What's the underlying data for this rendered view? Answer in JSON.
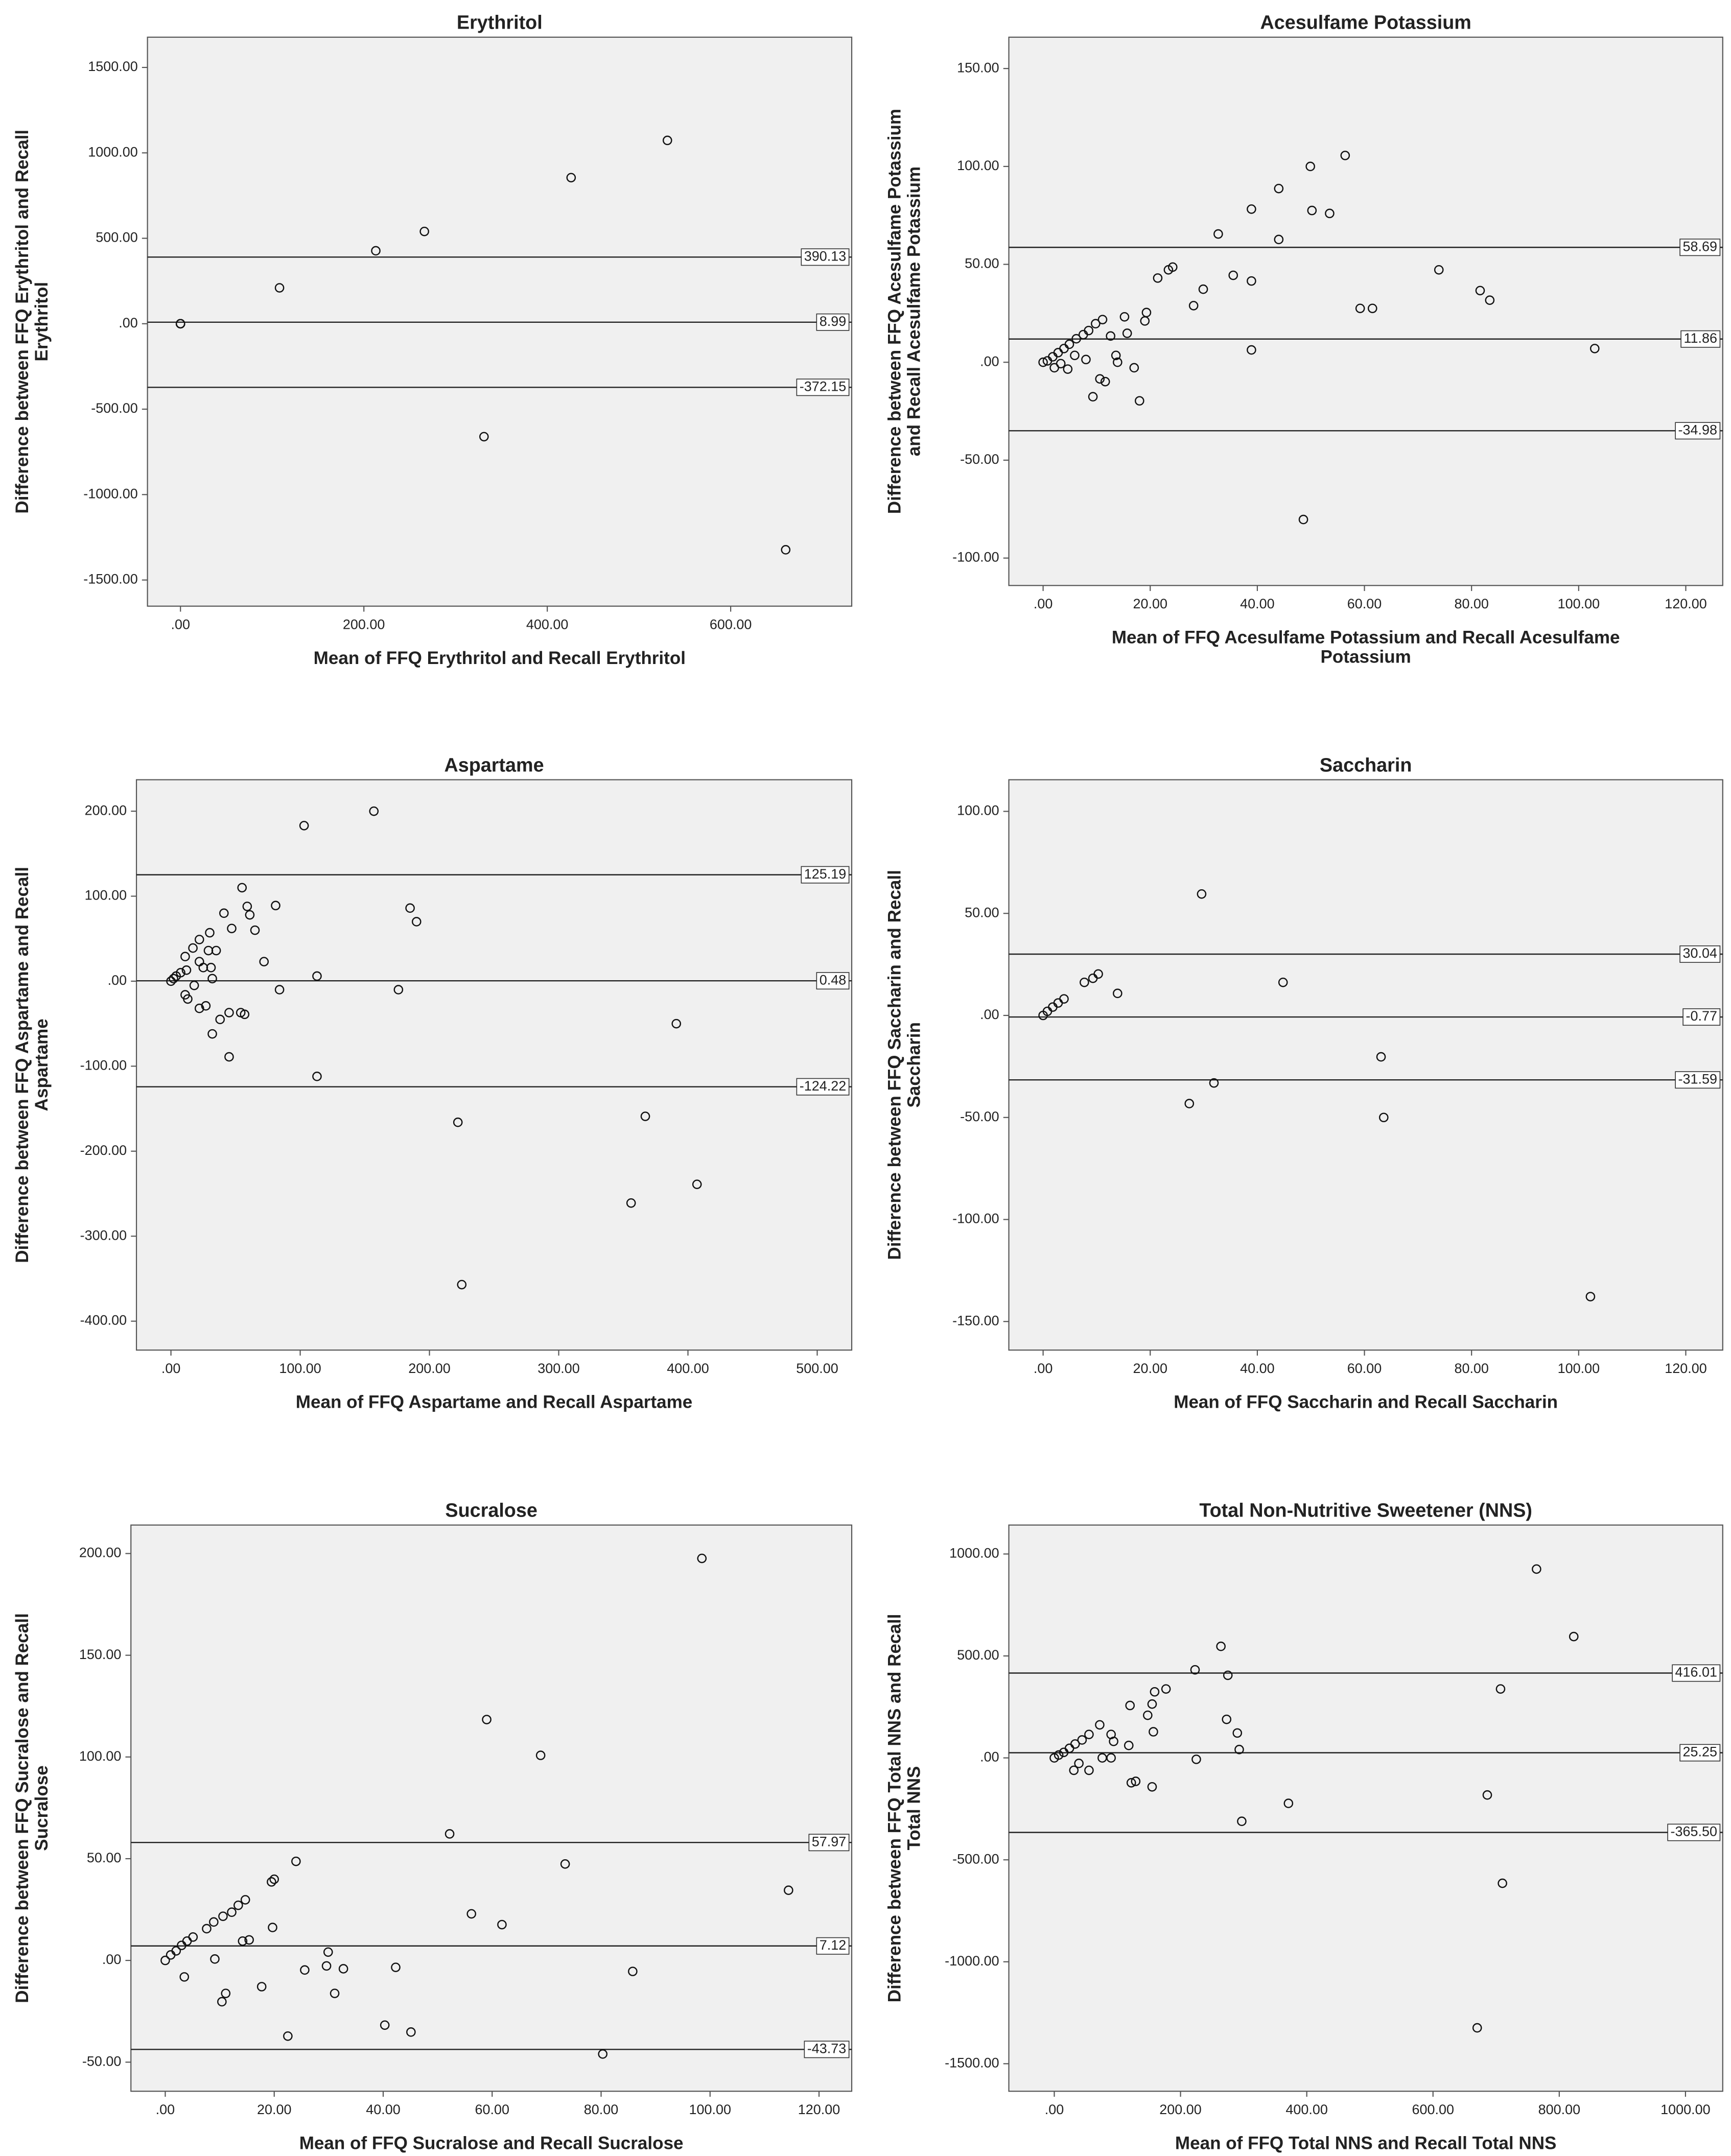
{
  "chart_data": [
    {
      "type": "scatter",
      "title": "Erythritol",
      "xlabel": [
        "Mean of FFQ Erythritol and Recall Erythritol"
      ],
      "ylabel": [
        "Difference between FFQ Erythritol and Recall",
        "Erythritol"
      ],
      "x": [
        0,
        0,
        0,
        0,
        0,
        108,
        213,
        266,
        426,
        531,
        331,
        660
      ],
      "values": [
        0,
        0,
        0,
        0,
        0,
        210,
        427,
        540,
        855,
        1073,
        -661,
        -1323
      ],
      "xlim": [
        -36,
        732
      ],
      "ylim": [
        -1653,
        1677
      ],
      "xticks": [
        {
          "value": 0,
          "label": ".00"
        },
        {
          "value": 200,
          "label": "200.00"
        },
        {
          "value": 400,
          "label": "400.00"
        },
        {
          "value": 600,
          "label": "600.00"
        }
      ],
      "yticks": [
        {
          "value": 1500,
          "label": "1500.00"
        },
        {
          "value": 1000,
          "label": "1000.00"
        },
        {
          "value": 500,
          "label": "500.00"
        },
        {
          "value": 0,
          "label": ".00"
        },
        {
          "value": -500,
          "label": "-500.00"
        },
        {
          "value": -1000,
          "label": "-1000.00"
        },
        {
          "value": -1500,
          "label": "-1500.00"
        }
      ],
      "reference_lines": [
        390.13,
        8.99,
        -372.15
      ]
    },
    {
      "type": "scatter",
      "title": "Acesulfame Potassium",
      "xlabel": [
        "Mean of FFQ Acesulfame Potassium and Recall Acesulfame",
        "Potassium"
      ],
      "ylabel": [
        "Difference between FFQ Acesulfame Potassium",
        "and Recall Acesulfame Potassium"
      ],
      "x": [
        56.4,
        49.9,
        44,
        38.9,
        50.2,
        53.5,
        32.7,
        44,
        73.9,
        24.2,
        23.4,
        35.5,
        38.9,
        21.4,
        29.9,
        81.6,
        83.4,
        28.1,
        59.2,
        61.5,
        19.3,
        19,
        15.2,
        11.1,
        9.8,
        8.5,
        7.5,
        15.7,
        12.6,
        6.2,
        4.9,
        3.9,
        2.8,
        1.8,
        0.8,
        0,
        3.3,
        4.6,
        2.1,
        8,
        13.9,
        17,
        10.6,
        11.6,
        9.3,
        18,
        38.9,
        103,
        48.6,
        13.6,
        5.9
      ],
      "values": [
        105.6,
        100,
        88.7,
        78.2,
        77.5,
        76,
        65.5,
        62.7,
        47.2,
        48.6,
        47.2,
        44.4,
        41.5,
        43,
        37.3,
        36.6,
        31.7,
        28.9,
        27.5,
        27.5,
        25.4,
        21.1,
        23.2,
        21.8,
        19.7,
        16.2,
        14.1,
        14.8,
        13.4,
        12,
        9.2,
        7,
        4.9,
        2.8,
        0.7,
        0,
        -0.7,
        -3.5,
        -2.8,
        1.4,
        0,
        -2.8,
        -8.5,
        -9.9,
        -17.6,
        -19.7,
        6.3,
        7,
        -80.3,
        3.5,
        3.5
      ],
      "xlim": [
        -6.4,
        126.9
      ],
      "ylim": [
        -114,
        166
      ],
      "xticks": [
        {
          "value": 0,
          "label": ".00"
        },
        {
          "value": 20,
          "label": "20.00"
        },
        {
          "value": 40,
          "label": "40.00"
        },
        {
          "value": 60,
          "label": "60.00"
        },
        {
          "value": 80,
          "label": "80.00"
        },
        {
          "value": 100,
          "label": "100.00"
        },
        {
          "value": 120,
          "label": "120.00"
        }
      ],
      "yticks": [
        {
          "value": 150,
          "label": "150.00"
        },
        {
          "value": 100,
          "label": "100.00"
        },
        {
          "value": 50,
          "label": "50.00"
        },
        {
          "value": 0,
          "label": ".00"
        },
        {
          "value": -50,
          "label": "-50.00"
        },
        {
          "value": -100,
          "label": "-100.00"
        }
      ],
      "reference_lines": [
        58.69,
        11.86,
        -34.98
      ]
    },
    {
      "type": "scatter",
      "title": "Aspartame",
      "xlabel": [
        "Mean of FFQ Aspartame and Recall Aspartame"
      ],
      "ylabel": [
        "Difference between FFQ Aspartame and Recall",
        "Aspartame"
      ],
      "x": [
        103,
        157,
        55,
        185,
        190,
        81,
        59,
        61,
        41,
        65,
        47,
        72,
        30,
        22,
        17,
        29,
        35,
        11,
        22,
        31,
        25,
        12,
        7.5,
        4,
        2,
        0,
        32,
        18,
        113,
        84,
        176,
        11,
        13,
        27,
        22,
        45,
        54,
        57,
        38,
        32,
        45,
        391,
        113,
        222,
        367,
        407,
        356,
        225
      ],
      "values": [
        183,
        200,
        110,
        86,
        70,
        89,
        88,
        78,
        80,
        60,
        62,
        23,
        57,
        49,
        39,
        36,
        36,
        29,
        23,
        16,
        16,
        13,
        10,
        6,
        3,
        0,
        3,
        -5,
        6,
        -10,
        -10,
        -16,
        -21,
        -29,
        -32,
        -37,
        -37,
        -39,
        -45,
        -62,
        -89,
        -50,
        -112,
        -166,
        -159,
        -239,
        -261,
        -357
      ],
      "xlim": [
        -26.7,
        526.7
      ],
      "ylim": [
        -434,
        237
      ],
      "xticks": [
        {
          "value": 0,
          "label": ".00"
        },
        {
          "value": 100,
          "label": "100.00"
        },
        {
          "value": 200,
          "label": "200.00"
        },
        {
          "value": 300,
          "label": "300.00"
        },
        {
          "value": 400,
          "label": "400.00"
        },
        {
          "value": 500,
          "label": "500.00"
        }
      ],
      "yticks": [
        {
          "value": 200,
          "label": "200.00"
        },
        {
          "value": 100,
          "label": "100.00"
        },
        {
          "value": 0,
          "label": ".00"
        },
        {
          "value": -100,
          "label": "-100.00"
        },
        {
          "value": -200,
          "label": "-200.00"
        },
        {
          "value": -300,
          "label": "-300.00"
        },
        {
          "value": -400,
          "label": "-400.00"
        }
      ],
      "reference_lines": [
        125.19,
        0.48,
        -124.22
      ]
    },
    {
      "type": "scatter",
      "title": "Saccharin",
      "xlabel": [
        "Mean of FFQ Saccharin and Recall Saccharin"
      ],
      "ylabel": [
        "Difference between FFQ Saccharin and Recall",
        "Saccharin"
      ],
      "x": [
        29.6,
        10.3,
        9.3,
        7.7,
        13.9,
        44.8,
        3.9,
        2.8,
        1.8,
        0.8,
        0,
        63.1,
        27.3,
        31.9,
        63.6,
        102.2
      ],
      "values": [
        59.5,
        20.3,
        18.2,
        16.2,
        10.8,
        16.2,
        8.1,
        6.1,
        4.1,
        2,
        0,
        -20.3,
        -43.2,
        -33.1,
        -50,
        -137.8
      ],
      "xlim": [
        -6.4,
        126.9
      ],
      "ylim": [
        -164,
        115.5
      ],
      "xticks": [
        {
          "value": 0,
          "label": ".00"
        },
        {
          "value": 20,
          "label": "20.00"
        },
        {
          "value": 40,
          "label": "40.00"
        },
        {
          "value": 60,
          "label": "60.00"
        },
        {
          "value": 80,
          "label": "80.00"
        },
        {
          "value": 100,
          "label": "100.00"
        },
        {
          "value": 120,
          "label": "120.00"
        }
      ],
      "yticks": [
        {
          "value": 100,
          "label": "100.00"
        },
        {
          "value": 50,
          "label": "50.00"
        },
        {
          "value": 0,
          "label": ".00"
        },
        {
          "value": -50,
          "label": "-50.00"
        },
        {
          "value": -100,
          "label": "-100.00"
        },
        {
          "value": -150,
          "label": "-150.00"
        }
      ],
      "reference_lines": [
        30.04,
        -0.77,
        -31.59
      ]
    },
    {
      "type": "scatter",
      "title": "Sucralose",
      "xlabel": [
        "Mean of FFQ Sucralose and Recall Sucralose"
      ],
      "ylabel": [
        "Difference between FFQ Sucralose and Recall",
        "Sucralose"
      ],
      "x": [
        98.5,
        59,
        68.9,
        52.2,
        73.4,
        114.4,
        24,
        20,
        19.5,
        56.2,
        61.8,
        19.7,
        14.7,
        13.4,
        12.2,
        10.6,
        8.9,
        7.6,
        5.1,
        4,
        3,
        2,
        1,
        0,
        14.2,
        15.4,
        9.1,
        29.9,
        29.6,
        32.7,
        25.6,
        42.3,
        85.8,
        3.5,
        17.7,
        31.1,
        11.1,
        10.4,
        40.3,
        45.1,
        22.5,
        80.3
      ],
      "values": [
        197.6,
        118.4,
        100.8,
        62.2,
        47.4,
        34.5,
        48.7,
        39.9,
        38.6,
        22.9,
        17.6,
        16.2,
        29.8,
        27.1,
        23.7,
        21.7,
        18.9,
        15.6,
        11.5,
        9.5,
        7.4,
        4.7,
        2.7,
        0,
        9.5,
        10.1,
        0.7,
        4.1,
        -2.7,
        -4.1,
        -4.7,
        -3.4,
        -5.4,
        -8.1,
        -12.9,
        -16.2,
        -16.2,
        -20.3,
        -31.8,
        -35.2,
        -37.2,
        -46
      ],
      "xlim": [
        -6.3,
        126
      ],
      "ylim": [
        -64.3,
        214
      ],
      "xticks": [
        {
          "value": 0,
          "label": ".00"
        },
        {
          "value": 20,
          "label": "20.00"
        },
        {
          "value": 40,
          "label": "40.00"
        },
        {
          "value": 60,
          "label": "60.00"
        },
        {
          "value": 80,
          "label": "80.00"
        },
        {
          "value": 100,
          "label": "100.00"
        },
        {
          "value": 120,
          "label": "120.00"
        }
      ],
      "yticks": [
        {
          "value": 200,
          "label": "200.00"
        },
        {
          "value": 150,
          "label": "150.00"
        },
        {
          "value": 100,
          "label": "100.00"
        },
        {
          "value": 50,
          "label": "50.00"
        },
        {
          "value": 0,
          "label": ".00"
        },
        {
          "value": -50,
          "label": "-50.00"
        }
      ],
      "reference_lines": [
        57.97,
        7.12,
        -43.73
      ]
    },
    {
      "type": "scatter",
      "title": "Total Non-Nutritive Sweetener (NNS)",
      "xlabel": [
        "Mean of FFQ Total NNS and Recall Total NNS"
      ],
      "ylabel": [
        "Difference between FFQ Total NNS and Recall",
        "Total NNS"
      ],
      "x": [
        764,
        823,
        264,
        223,
        275,
        707,
        177,
        159,
        120,
        155,
        148,
        273,
        72,
        290,
        157,
        55,
        90,
        94,
        44,
        33,
        24,
        15,
        7,
        0,
        293,
        225,
        118,
        76,
        90,
        39,
        31,
        55,
        686,
        371,
        155,
        129,
        122,
        297,
        710,
        670
      ],
      "values": [
        926,
        595,
        547,
        432,
        405,
        338,
        338,
        324,
        257,
        264,
        209,
        189,
        162,
        122,
        128,
        115,
        115,
        81,
        88,
        68,
        47,
        27,
        14,
        0,
        41,
        -7,
        61,
        0,
        0,
        -27,
        -61,
        -61,
        -182,
        -223,
        -142,
        -115,
        -122,
        -311,
        -615,
        -1324
      ],
      "xlim": [
        -72,
        1059
      ],
      "ylim": [
        -1635,
        1142
      ],
      "xticks": [
        {
          "value": 0,
          "label": ".00"
        },
        {
          "value": 200,
          "label": "200.00"
        },
        {
          "value": 400,
          "label": "400.00"
        },
        {
          "value": 600,
          "label": "600.00"
        },
        {
          "value": 800,
          "label": "800.00"
        },
        {
          "value": 1000,
          "label": "1000.00"
        }
      ],
      "yticks": [
        {
          "value": 1000,
          "label": "1000.00"
        },
        {
          "value": 500,
          "label": "500.00"
        },
        {
          "value": 0,
          "label": ".00"
        },
        {
          "value": -500,
          "label": "-500.00"
        },
        {
          "value": -1000,
          "label": "-1000.00"
        },
        {
          "value": -1500,
          "label": "-1500.00"
        }
      ],
      "reference_lines": [
        416.01,
        25.25,
        {
          "value": -365.5,
          "label": "-365.50"
        }
      ]
    }
  ]
}
